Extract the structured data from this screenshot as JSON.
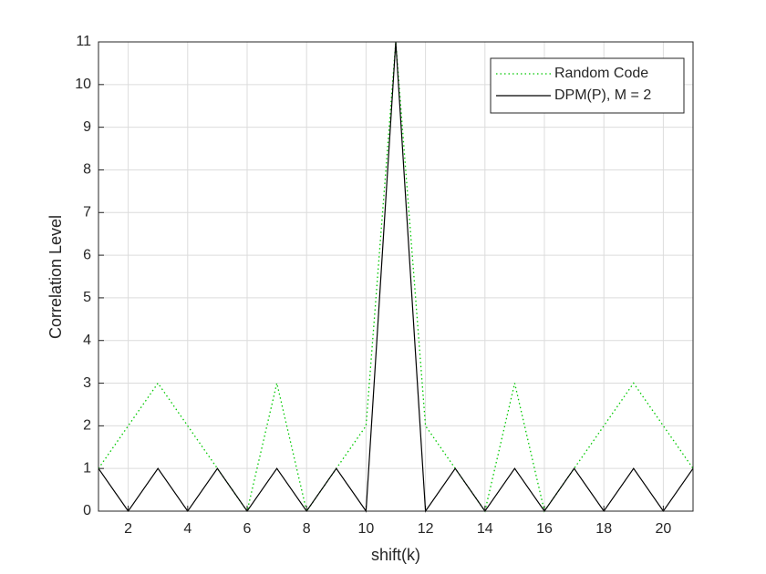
{
  "chart_data": {
    "type": "line",
    "xlabel": "shift(k)",
    "ylabel": "Correlation Level",
    "x": [
      1,
      2,
      3,
      4,
      5,
      6,
      7,
      8,
      9,
      10,
      11,
      12,
      13,
      14,
      15,
      16,
      17,
      18,
      19,
      20,
      21
    ],
    "series": [
      {
        "name": "Random Code",
        "color": "#00c800",
        "dash": "dotted",
        "values": [
          1,
          2,
          3,
          2,
          1,
          0,
          3,
          0,
          1,
          2,
          11,
          2,
          1,
          0,
          3,
          0,
          1,
          2,
          3,
          2,
          1
        ]
      },
      {
        "name": "DPM(P), M = 2",
        "color": "#000000",
        "dash": "solid",
        "values": [
          1,
          0,
          1,
          0,
          1,
          0,
          1,
          0,
          1,
          0,
          11,
          0,
          1,
          0,
          1,
          0,
          1,
          0,
          1,
          0,
          1
        ]
      }
    ],
    "xlim": [
      1,
      21
    ],
    "xticks": [
      2,
      4,
      6,
      8,
      10,
      12,
      14,
      16,
      18,
      20
    ],
    "ylim": [
      0,
      11
    ],
    "yticks": [
      0,
      1,
      2,
      3,
      4,
      5,
      6,
      7,
      8,
      9,
      10,
      11
    ],
    "grid": true,
    "legend": "northeast"
  }
}
